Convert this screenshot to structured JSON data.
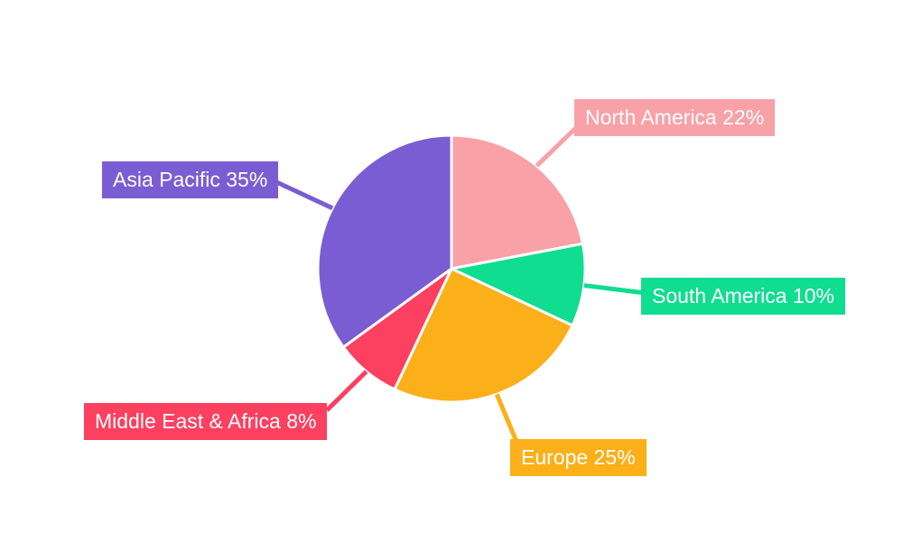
{
  "page": {
    "background_color": "#FFFFFF"
  },
  "chart_data": {
    "type": "pie",
    "title": "",
    "categories": [
      "North America",
      "South America",
      "Europe",
      "Middle East & Africa",
      "Asia Pacific"
    ],
    "values": [
      22,
      10,
      25,
      8,
      35
    ],
    "unit": "%",
    "start_angle_deg": 0,
    "direction": "clockwise",
    "legend": "none",
    "slice_border_color": "#FFFFFF",
    "label_text_color": "#FFFFFF",
    "segments": [
      {
        "label": "North America",
        "value": 22,
        "display": "North America 22%",
        "color": "#F8A1A7"
      },
      {
        "label": "South America",
        "value": 10,
        "display": "South America 10%",
        "color": "#10DD90"
      },
      {
        "label": "Europe",
        "value": 25,
        "display": "Europe 25%",
        "color": "#FBAF18"
      },
      {
        "label": "Middle East & Africa",
        "value": 8,
        "display": "Middle East & Africa 8%",
        "color": "#FB4060"
      },
      {
        "label": "Asia Pacific",
        "value": 35,
        "display": "Asia Pacific 35%",
        "color": "#7A5DD3"
      }
    ]
  }
}
